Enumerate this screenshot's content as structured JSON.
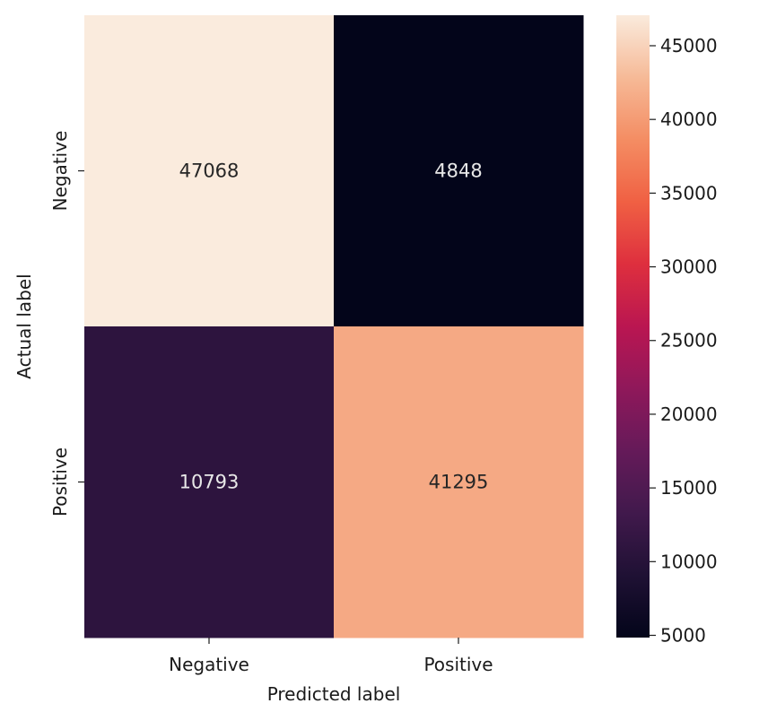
{
  "chart_data": {
    "type": "heatmap",
    "title": "",
    "xlabel": "Predicted label",
    "ylabel": "Actual label",
    "x_categories": [
      "Negative",
      "Positive"
    ],
    "y_categories": [
      "Negative",
      "Positive"
    ],
    "values": [
      [
        47068,
        4848
      ],
      [
        10793,
        41295
      ]
    ],
    "colormap": "rocket",
    "colorbar": {
      "range": [
        4848,
        47068
      ],
      "ticks": [
        5000,
        10000,
        15000,
        20000,
        25000,
        30000,
        35000,
        40000,
        45000
      ],
      "tick_labels": [
        "5000",
        "10000",
        "15000",
        "20000",
        "25000",
        "30000",
        "35000",
        "40000",
        "45000"
      ],
      "placement": "right"
    },
    "colors": {
      "low": "#03051a",
      "high": "#faebdd",
      "light_text": "#e8e8e8",
      "dark_text": "#262626"
    }
  }
}
